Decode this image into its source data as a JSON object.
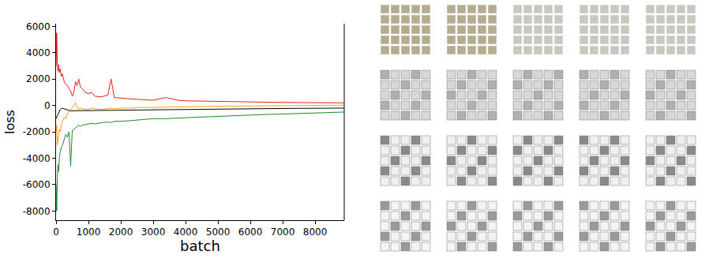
{
  "chart_data": {
    "type": "line",
    "xlabel": "batch",
    "ylabel": "loss",
    "x": [
      0,
      20,
      40,
      60,
      80,
      100,
      130,
      160,
      200,
      250,
      300,
      350,
      400,
      450,
      500,
      550,
      600,
      650,
      700,
      750,
      800,
      900,
      1000,
      1100,
      1200,
      1400,
      1600,
      1700,
      1800,
      2000,
      2300,
      2600,
      3000,
      3400,
      3800,
      4000,
      4400,
      4800,
      5200,
      5600,
      6000,
      6500,
      7000,
      7500,
      8000,
      8500,
      8900
    ],
    "series": [
      {
        "color": "#e8201c",
        "values": [
          3000,
          5500,
          3200,
          2600,
          3100,
          2500,
          2800,
          2200,
          2400,
          1800,
          1600,
          1500,
          1300,
          1100,
          700,
          1000,
          1800,
          1500,
          2000,
          1400,
          1300,
          1000,
          900,
          1000,
          700,
          650,
          800,
          2000,
          600,
          550,
          500,
          450,
          400,
          600,
          380,
          350,
          330,
          320,
          300,
          280,
          260,
          250,
          230,
          220,
          210,
          200,
          200
        ]
      },
      {
        "color": "#ff9f0e",
        "values": [
          -2000,
          -1500,
          -3000,
          -2500,
          -2200,
          -1800,
          -2000,
          -1500,
          -1200,
          -900,
          -1000,
          -600,
          -500,
          -300,
          -200,
          0,
          200,
          -100,
          -300,
          -200,
          -250,
          -300,
          -300,
          -200,
          -250,
          -300,
          -250,
          -200,
          -250,
          -200,
          -200,
          -150,
          -150,
          -120,
          -100,
          -100,
          -80,
          -60,
          -50,
          -40,
          -30,
          -20,
          -10,
          0,
          0,
          10,
          20
        ]
      },
      {
        "color": "#1a8a2a",
        "values": [
          -6000,
          -8000,
          -5500,
          -4500,
          -5000,
          -4000,
          -3500,
          -3200,
          -3000,
          -2600,
          -2200,
          -2400,
          -2000,
          -4600,
          -1900,
          -1800,
          -1700,
          -1600,
          -1500,
          -1600,
          -1500,
          -1450,
          -1400,
          -1350,
          -1400,
          -1300,
          -1250,
          -1300,
          -1200,
          -1200,
          -1150,
          -1100,
          -1000,
          -1000,
          -950,
          -900,
          -880,
          -850,
          -800,
          -780,
          -700,
          -680,
          -650,
          -600,
          -550,
          -520,
          -500
        ]
      },
      {
        "color": "#000000",
        "values": [
          -1000,
          -900,
          -800,
          -700,
          -600,
          -400,
          -300,
          -250,
          -200,
          -250,
          -300,
          -350,
          -380,
          -400,
          -400,
          -400,
          -400,
          -400,
          -400,
          -400,
          -400,
          -400,
          -400,
          -400,
          -400,
          -390,
          -380,
          -380,
          -370,
          -360,
          -350,
          -340,
          -330,
          -320,
          -310,
          -300,
          -290,
          -280,
          -270,
          -260,
          -250,
          -240,
          -230,
          -220,
          -210,
          -200,
          -200
        ]
      }
    ],
    "xlim": [
      0,
      8900
    ],
    "ylim": [
      -8700,
      6200
    ],
    "xticks": [
      0,
      1000,
      2000,
      3000,
      4000,
      5000,
      6000,
      7000,
      8000
    ],
    "yticks": [
      -8000,
      -6000,
      -4000,
      -2000,
      0,
      2000,
      4000,
      6000
    ],
    "grid": false
  }
}
